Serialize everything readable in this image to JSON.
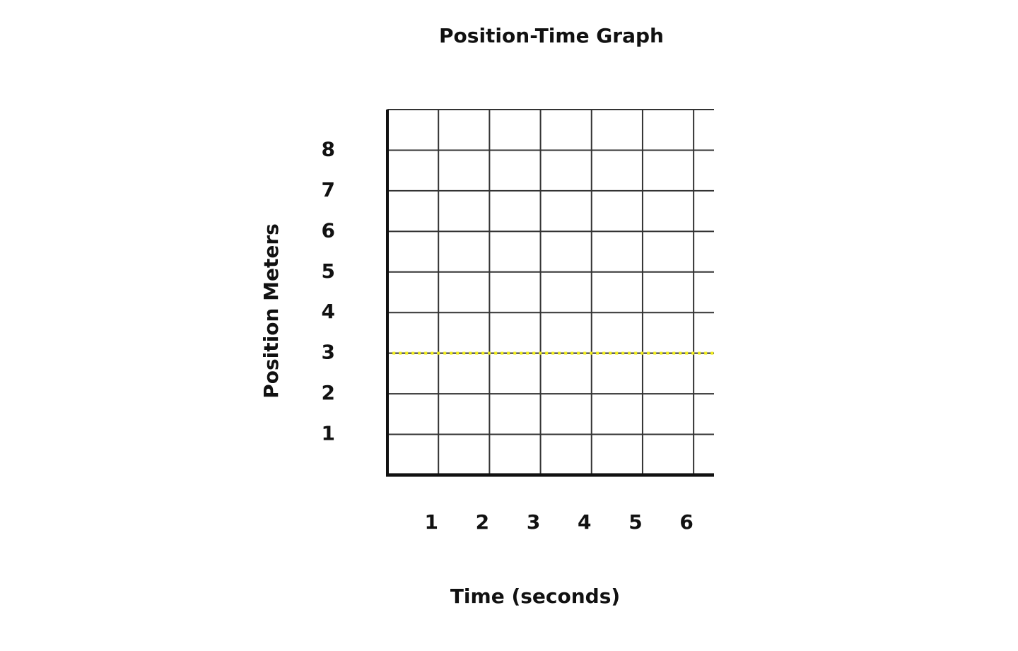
{
  "chart_data": {
    "type": "line",
    "title": "Position-Time Graph",
    "x_label": "Time (seconds)",
    "y_label": "Position Meters",
    "xlim": [
      0,
      6.4
    ],
    "xticks": [
      1,
      2,
      3,
      4,
      5,
      6
    ],
    "ylim": [
      0,
      9
    ],
    "yticks": [
      1,
      2,
      3,
      4,
      5,
      6,
      7,
      8
    ],
    "grid": true,
    "series": [
      {
        "color": "#f2ee1a",
        "x": [
          0.1,
          6.4
        ],
        "values": [
          3,
          3
        ]
      }
    ]
  }
}
